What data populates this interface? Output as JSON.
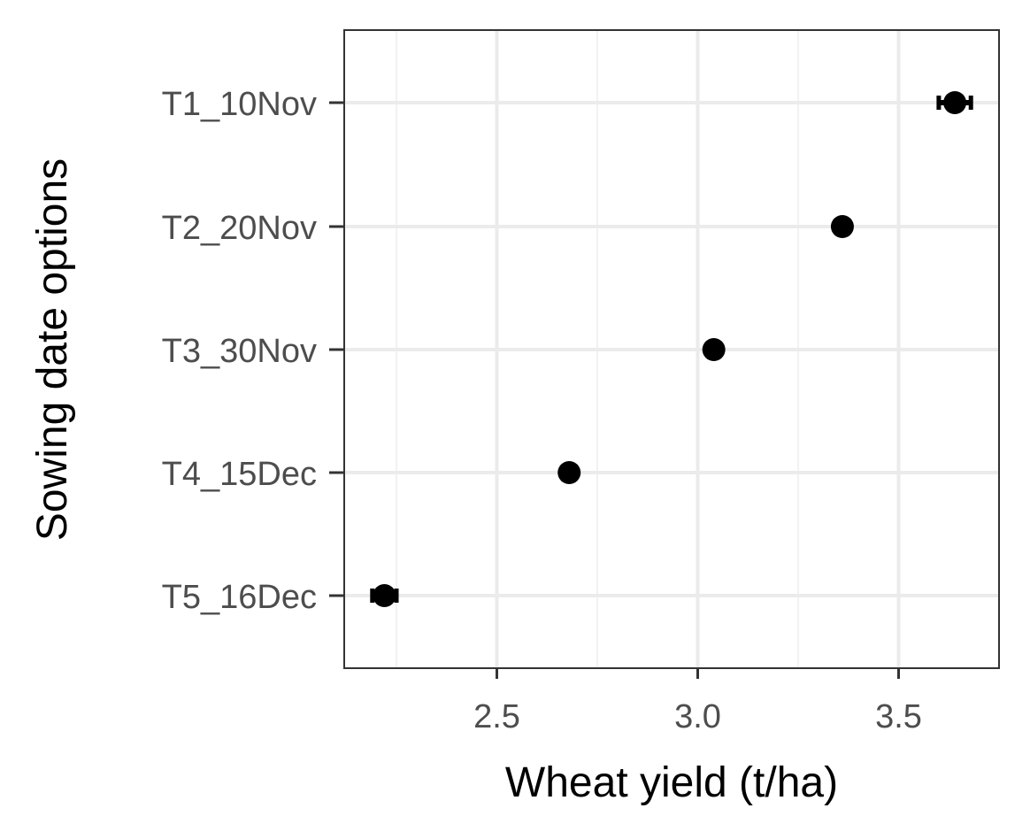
{
  "chart_data": {
    "type": "scatter",
    "xlabel": "Wheat yield (t/ha)",
    "ylabel": "Sowing date options",
    "categories": [
      "T1_10Nov",
      "T2_20Nov",
      "T3_30Nov",
      "T4_15Dec",
      "T5_16Dec"
    ],
    "values": [
      3.64,
      3.36,
      3.04,
      2.68,
      2.22
    ],
    "error": [
      0.04,
      0.01,
      0.01,
      0.01,
      0.03
    ],
    "xlim": [
      2.12,
      3.75
    ],
    "xticks": [
      "2.5",
      "3.0",
      "3.5"
    ],
    "grid": true,
    "colors": {
      "point": "#000000",
      "grid_major": "#ebebeb",
      "grid_minor": "#f2f2f2",
      "panel_border": "#333333",
      "tick_text": "#4d4d4d"
    }
  }
}
